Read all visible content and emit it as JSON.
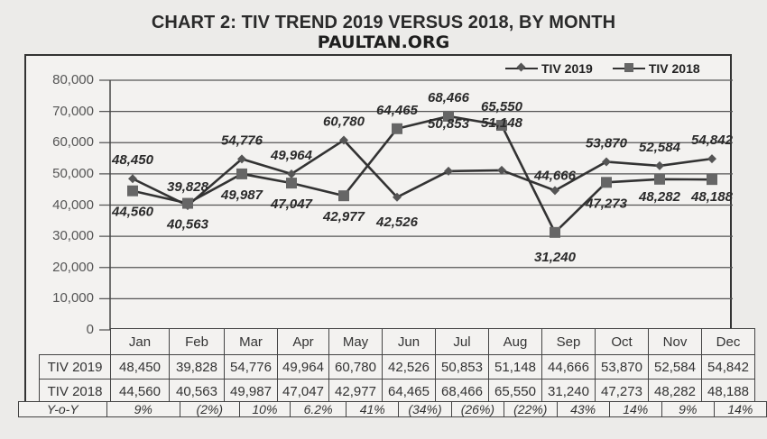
{
  "title": "CHART 2: TIV TREND 2019 VERSUS 2018, BY MONTH",
  "watermark": "PAULTAN.ORG",
  "legend": [
    {
      "label": "TIV 2019",
      "marker": "diamond"
    },
    {
      "label": "TIV 2018",
      "marker": "square"
    }
  ],
  "y_ticks": [
    "80,000",
    "70,000",
    "60,000",
    "50,000",
    "40,000",
    "30,000",
    "20,000",
    "10,000",
    "0"
  ],
  "table": {
    "months": [
      "Jan",
      "Feb",
      "Mar",
      "Apr",
      "May",
      "Jun",
      "Jul",
      "Aug",
      "Sep",
      "Oct",
      "Nov",
      "Dec"
    ],
    "rows": [
      {
        "label": "TIV 2019",
        "values": [
          "48,450",
          "39,828",
          "54,776",
          "49,964",
          "60,780",
          "42,526",
          "50,853",
          "51,148",
          "44,666",
          "53,870",
          "52,584",
          "54,842"
        ]
      },
      {
        "label": "TIV 2018",
        "values": [
          "44,560",
          "40,563",
          "49,987",
          "47,047",
          "42,977",
          "64,465",
          "68,466",
          "65,550",
          "31,240",
          "47,273",
          "48,282",
          "48,188"
        ]
      }
    ],
    "yoy": {
      "label": "Y-o-Y",
      "values": [
        "9%",
        "(2%)",
        "10%",
        "6.2%",
        "41%",
        "(34%)",
        "(26%)",
        "(22%)",
        "43%",
        "14%",
        "9%",
        "14%"
      ]
    }
  },
  "colors": {
    "background": "#ecebe9",
    "line": "#333333",
    "marker_2019": "#555555",
    "marker_2018": "#666666",
    "text": "#2b2b2b"
  },
  "chart_data": {
    "type": "line",
    "title": "CHART 2: TIV TREND 2019 VERSUS 2018, BY MONTH",
    "xlabel": "",
    "ylabel": "",
    "ylim": [
      0,
      80000
    ],
    "yticks": [
      0,
      10000,
      20000,
      30000,
      40000,
      50000,
      60000,
      70000,
      80000
    ],
    "grid": true,
    "legend_position": "top-right",
    "categories": [
      "Jan",
      "Feb",
      "Mar",
      "Apr",
      "May",
      "Jun",
      "Jul",
      "Aug",
      "Sep",
      "Oct",
      "Nov",
      "Dec"
    ],
    "series": [
      {
        "name": "TIV 2019",
        "marker": "diamond",
        "values": [
          48450,
          39828,
          54776,
          49964,
          60780,
          42526,
          50853,
          51148,
          44666,
          53870,
          52584,
          54842
        ]
      },
      {
        "name": "TIV 2018",
        "marker": "square",
        "values": [
          44560,
          40563,
          49987,
          47047,
          42977,
          64465,
          68466,
          65550,
          31240,
          47273,
          48282,
          48188
        ]
      }
    ],
    "yoy_change": [
      "9%",
      "(2%)",
      "10%",
      "6.2%",
      "41%",
      "(34%)",
      "(26%)",
      "(22%)",
      "43%",
      "14%",
      "9%",
      "14%"
    ]
  }
}
